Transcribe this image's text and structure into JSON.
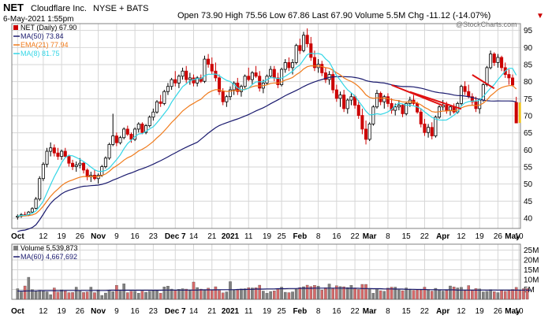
{
  "header": {
    "symbol": "NET",
    "company": "Cloudflare Inc.",
    "exchange": "NYSE + BATS",
    "datetime": "6-May-2021 1:55pm",
    "quote_line": "Open 73.90 High 75.56 Low 67.86 Last 67.90 Volume 5.5M Chg -11.12 (-14.07%)",
    "chg_arrow": "▼",
    "watermark": "@StockCharts.com"
  },
  "legend": {
    "price": "NET (Daily) 67.90",
    "ma50": "MA(50) 73.84",
    "ema21": "EMA(21) 77.94",
    "ma8": "MA(8) 81.75",
    "volume": "Volume 5,539,873",
    "vol_ma60": "MA(60) 4,667,692"
  },
  "colors": {
    "up": "#000000",
    "down": "#cc0000",
    "ma50": "#1a1a6e",
    "ema21": "#f07a1a",
    "ma8": "#33d6e6",
    "trendline": "#e01010",
    "vol_up": "#808080",
    "vol_down": "#d66a6a",
    "grid": "#d6d6d6",
    "last_marker": "#f0c419"
  },
  "chart_data": [
    {
      "type": "candlestick",
      "ylim": [
        37,
        97
      ],
      "y_ticks": [
        40,
        45,
        50,
        55,
        60,
        65,
        70,
        75,
        80,
        85,
        90,
        95
      ],
      "x_tick_labels": [
        "Oct",
        "12",
        "19",
        "26",
        "Nov",
        "9",
        "16",
        "23",
        "Dec 7",
        "14",
        "21",
        "2021",
        "11",
        "19",
        "25",
        "Feb",
        "8",
        "16",
        "22",
        "Mar",
        "8",
        "15",
        "22",
        "Apr",
        "12",
        "19",
        "26",
        "May",
        "10"
      ],
      "x_tick_index": [
        0,
        7,
        12,
        17,
        22,
        27,
        32,
        37,
        43,
        48,
        53,
        58,
        63,
        68,
        72,
        77,
        82,
        87,
        92,
        96,
        101,
        106,
        111,
        116,
        121,
        126,
        131,
        135,
        140
      ],
      "ohlc": [
        [
          40.3,
          41.1,
          39.6,
          40.6
        ],
        [
          40.6,
          41.5,
          40.1,
          41.0
        ],
        [
          41.1,
          41.9,
          40.6,
          40.9
        ],
        [
          41.0,
          42.1,
          40.6,
          41.8
        ],
        [
          41.8,
          43.2,
          41.4,
          42.8
        ],
        [
          42.9,
          46.2,
          42.6,
          45.6
        ],
        [
          45.6,
          52.3,
          45.1,
          51.6
        ],
        [
          51.6,
          56.4,
          50.9,
          55.8
        ],
        [
          55.8,
          60.6,
          54.9,
          59.6
        ],
        [
          59.6,
          62.2,
          58.1,
          60.6
        ],
        [
          60.6,
          61.6,
          58.1,
          59.1
        ],
        [
          59.1,
          60.6,
          57.1,
          58.1
        ],
        [
          58.1,
          60.1,
          57.1,
          59.6
        ],
        [
          59.6,
          60.6,
          57.6,
          58.1
        ],
        [
          58.1,
          58.6,
          55.1,
          56.1
        ],
        [
          56.1,
          57.1,
          54.1,
          55.1
        ],
        [
          55.1,
          56.6,
          53.6,
          55.6
        ],
        [
          55.6,
          57.6,
          54.6,
          56.1
        ],
        [
          56.1,
          56.6,
          53.1,
          54.1
        ],
        [
          54.1,
          54.6,
          51.1,
          52.1
        ],
        [
          52.1,
          53.6,
          50.6,
          52.6
        ],
        [
          52.6,
          54.1,
          51.1,
          51.6
        ],
        [
          51.6,
          53.1,
          50.1,
          52.6
        ],
        [
          52.6,
          55.6,
          52.1,
          55.1
        ],
        [
          55.1,
          58.1,
          54.6,
          57.6
        ],
        [
          57.6,
          62.1,
          57.1,
          61.6
        ],
        [
          61.6,
          70.6,
          61.1,
          64.1
        ],
        [
          64.1,
          65.1,
          61.1,
          62.1
        ],
        [
          62.1,
          64.1,
          61.6,
          63.6
        ],
        [
          63.6,
          66.6,
          63.1,
          66.1
        ],
        [
          66.1,
          67.1,
          64.1,
          64.6
        ],
        [
          64.6,
          65.1,
          62.1,
          63.1
        ],
        [
          63.1,
          66.6,
          62.6,
          66.1
        ],
        [
          66.1,
          68.1,
          65.1,
          67.6
        ],
        [
          67.6,
          68.1,
          64.6,
          65.1
        ],
        [
          65.1,
          67.6,
          64.6,
          67.1
        ],
        [
          67.1,
          70.1,
          66.6,
          69.6
        ],
        [
          69.6,
          72.1,
          68.6,
          71.1
        ],
        [
          71.1,
          74.6,
          70.6,
          74.1
        ],
        [
          74.1,
          76.1,
          72.6,
          73.6
        ],
        [
          73.6,
          77.6,
          73.1,
          77.1
        ],
        [
          77.1,
          79.6,
          76.1,
          78.6
        ],
        [
          78.6,
          81.1,
          77.6,
          80.6
        ],
        [
          80.6,
          83.1,
          78.6,
          79.6
        ],
        [
          79.6,
          82.1,
          78.1,
          81.6
        ],
        [
          81.6,
          84.1,
          80.6,
          83.1
        ],
        [
          83.1,
          84.6,
          79.6,
          80.6
        ],
        [
          80.6,
          82.6,
          79.1,
          81.1
        ],
        [
          81.1,
          82.1,
          78.6,
          79.6
        ],
        [
          79.6,
          81.6,
          78.6,
          81.1
        ],
        [
          81.1,
          82.1,
          79.6,
          80.1
        ],
        [
          80.1,
          87.6,
          79.6,
          86.6
        ],
        [
          86.6,
          88.1,
          84.1,
          85.1
        ],
        [
          85.1,
          87.1,
          82.1,
          83.1
        ],
        [
          83.1,
          85.6,
          80.1,
          81.1
        ],
        [
          81.1,
          82.1,
          76.1,
          77.1
        ],
        [
          77.1,
          78.1,
          73.1,
          74.1
        ],
        [
          74.1,
          76.1,
          72.6,
          75.6
        ],
        [
          75.6,
          78.6,
          74.6,
          77.6
        ],
        [
          77.6,
          80.1,
          76.1,
          79.6
        ],
        [
          79.6,
          81.1,
          76.1,
          77.1
        ],
        [
          77.1,
          79.1,
          75.6,
          78.6
        ],
        [
          78.6,
          82.1,
          78.1,
          81.6
        ],
        [
          81.6,
          84.1,
          80.1,
          80.6
        ],
        [
          80.6,
          83.1,
          79.1,
          82.6
        ],
        [
          82.6,
          84.6,
          81.1,
          81.6
        ],
        [
          81.6,
          83.1,
          77.1,
          78.1
        ],
        [
          78.1,
          80.6,
          76.6,
          79.6
        ],
        [
          79.6,
          82.1,
          79.1,
          81.6
        ],
        [
          81.6,
          84.6,
          81.1,
          83.6
        ],
        [
          83.6,
          84.6,
          80.1,
          81.1
        ],
        [
          81.1,
          82.6,
          78.1,
          79.1
        ],
        [
          79.1,
          84.1,
          78.6,
          83.6
        ],
        [
          83.6,
          86.6,
          82.6,
          85.6
        ],
        [
          85.6,
          87.1,
          83.1,
          84.1
        ],
        [
          84.1,
          86.6,
          82.1,
          85.6
        ],
        [
          85.6,
          91.1,
          85.1,
          90.6
        ],
        [
          90.6,
          92.6,
          88.1,
          89.1
        ],
        [
          89.1,
          94.6,
          88.6,
          93.6
        ],
        [
          93.6,
          95.6,
          90.1,
          91.1
        ],
        [
          91.1,
          93.1,
          86.1,
          87.1
        ],
        [
          87.1,
          89.1,
          83.1,
          84.1
        ],
        [
          84.1,
          86.6,
          82.6,
          85.1
        ],
        [
          85.1,
          86.1,
          81.6,
          82.6
        ],
        [
          82.6,
          84.1,
          79.6,
          80.6
        ],
        [
          80.6,
          83.1,
          79.1,
          82.1
        ],
        [
          82.1,
          83.1,
          76.6,
          77.6
        ],
        [
          77.6,
          79.1,
          74.1,
          75.1
        ],
        [
          75.1,
          77.1,
          72.6,
          76.1
        ],
        [
          76.1,
          77.6,
          71.1,
          72.1
        ],
        [
          72.1,
          75.1,
          70.6,
          74.6
        ],
        [
          74.6,
          76.6,
          73.1,
          75.6
        ],
        [
          75.6,
          76.1,
          72.1,
          73.1
        ],
        [
          73.1,
          74.6,
          69.1,
          70.1
        ],
        [
          70.1,
          72.1,
          64.6,
          66.1
        ],
        [
          66.1,
          68.6,
          61.6,
          63.1
        ],
        [
          63.1,
          68.1,
          62.6,
          67.6
        ],
        [
          67.6,
          73.1,
          67.1,
          72.6
        ],
        [
          72.6,
          77.6,
          72.1,
          76.6
        ],
        [
          76.6,
          77.1,
          73.1,
          74.1
        ],
        [
          74.1,
          76.1,
          72.1,
          75.6
        ],
        [
          75.6,
          76.6,
          72.6,
          73.6
        ],
        [
          73.6,
          75.1,
          70.6,
          71.6
        ],
        [
          71.6,
          73.6,
          70.1,
          72.6
        ],
        [
          72.6,
          74.6,
          71.6,
          73.1
        ],
        [
          73.1,
          73.6,
          69.6,
          70.6
        ],
        [
          70.6,
          74.1,
          70.1,
          73.6
        ],
        [
          73.6,
          75.6,
          72.6,
          74.6
        ],
        [
          74.6,
          76.1,
          73.1,
          73.6
        ],
        [
          73.6,
          74.1,
          70.6,
          71.1
        ],
        [
          71.1,
          72.1,
          66.6,
          67.6
        ],
        [
          67.6,
          69.1,
          64.1,
          65.1
        ],
        [
          65.1,
          67.6,
          63.6,
          66.6
        ],
        [
          66.6,
          68.1,
          63.1,
          64.1
        ],
        [
          64.1,
          70.1,
          63.6,
          69.6
        ],
        [
          69.6,
          73.1,
          69.1,
          72.6
        ],
        [
          72.6,
          74.6,
          71.6,
          73.1
        ],
        [
          73.1,
          74.1,
          70.6,
          71.6
        ],
        [
          71.6,
          73.1,
          70.1,
          72.6
        ],
        [
          72.6,
          73.6,
          70.6,
          71.1
        ],
        [
          71.1,
          74.1,
          70.6,
          73.6
        ],
        [
          73.6,
          79.1,
          73.1,
          78.6
        ],
        [
          78.6,
          80.1,
          76.1,
          77.1
        ],
        [
          77.1,
          79.1,
          75.1,
          75.6
        ],
        [
          75.6,
          76.6,
          73.1,
          74.1
        ],
        [
          74.1,
          75.6,
          71.1,
          72.1
        ],
        [
          72.1,
          75.1,
          70.6,
          74.6
        ],
        [
          74.6,
          79.6,
          74.1,
          79.1
        ],
        [
          79.1,
          84.6,
          78.6,
          84.1
        ],
        [
          84.1,
          89.1,
          83.6,
          88.1
        ],
        [
          88.1,
          88.6,
          84.6,
          85.6
        ],
        [
          85.6,
          88.1,
          84.1,
          87.1
        ],
        [
          87.1,
          87.6,
          83.1,
          84.1
        ],
        [
          84.1,
          85.6,
          81.1,
          82.1
        ],
        [
          82.1,
          83.6,
          79.1,
          81.1
        ],
        [
          81.1,
          82.1,
          78.6,
          79.0
        ],
        [
          73.9,
          75.56,
          67.86,
          67.9
        ]
      ],
      "trendlines": [
        [
          [
            102,
            79
          ],
          [
            116,
            73
          ]
        ],
        [
          [
            107,
            77
          ],
          [
            121,
            72
          ]
        ],
        [
          [
            124,
            82
          ],
          [
            130,
            78
          ]
        ]
      ]
    },
    {
      "type": "bar",
      "ylim": [
        0,
        28
      ],
      "y_ticks": [
        5,
        10,
        15,
        20,
        25
      ],
      "y_tick_labels": [
        "5M",
        "10M",
        "15M",
        "20M",
        "25M"
      ],
      "values": [
        5.4,
        3.8,
        6.8,
        11.2,
        4.9,
        4.1,
        4.6,
        4.5,
        3.8,
        2.4,
        5.8,
        3.7,
        4.8,
        4.4,
        3.4,
        3.5,
        6.2,
        4.5,
        3.5,
        3.8,
        6.2,
        3.4,
        4.8,
        2.0,
        3.2,
        4.5,
        3.9,
        7.1,
        4.2,
        7.9,
        3.4,
        4.1,
        4.1,
        3.1,
        4.2,
        3.6,
        4.1,
        4.5,
        4.5,
        3.1,
        6.3,
        6.7,
        5.2,
        4.5,
        5.1,
        5.4,
        5.2,
        4.5,
        8.8,
        6.0,
        5.2,
        4.8,
        5.7,
        4.9,
        6.4,
        4.5,
        3.3,
        3.8,
        9.0,
        4.6,
        4.7,
        5.3,
        5.4,
        5.9,
        5.8,
        5.9,
        7.2,
        4.2,
        3.1,
        4.0,
        4.3,
        5.1,
        6.2,
        3.6,
        3.4,
        3.8,
        5.2,
        6.0,
        6.4,
        7.2,
        6.5,
        7.1,
        6.7,
        4.7,
        5.9,
        7.8,
        5.5,
        6.9,
        6.5,
        6.4,
        6.0,
        7.1,
        5.8,
        5.0,
        7.6,
        7.6,
        5.2,
        3.1,
        5.5,
        4.4,
        4.1,
        5.7,
        6.2,
        6.2,
        4.8,
        4.4,
        5.8,
        5.2,
        4.6,
        4.9,
        4.8,
        6.2,
        5.0,
        4.2,
        5.6,
        4.9,
        4.2,
        4.5,
        6.8,
        6.3,
        5.8,
        6.1,
        4.4,
        7.0,
        4.6,
        5.5,
        5.3,
        3.8,
        4.1,
        4.9,
        3.9,
        3.4,
        4.6,
        4.1,
        4.6,
        5.0,
        6.1,
        4.4,
        5.4,
        5.5
      ],
      "ma60": [
        4.2,
        4.2,
        4.2,
        4.3,
        4.3,
        4.3,
        4.4,
        4.4,
        4.4,
        4.4,
        4.4,
        4.4,
        4.4,
        4.5,
        4.5,
        4.5,
        4.5,
        4.5,
        4.5,
        4.5,
        4.5,
        4.5,
        4.5,
        4.5,
        4.5,
        4.6,
        4.6,
        4.6,
        4.6,
        4.6,
        4.6,
        4.6,
        4.6,
        4.6,
        4.6,
        4.6,
        4.6,
        4.6,
        4.6,
        4.6,
        4.7,
        4.7,
        4.7,
        4.7,
        4.7,
        4.7,
        4.7,
        4.7,
        4.7,
        4.7,
        4.8,
        4.8,
        4.8,
        4.8,
        4.8,
        4.9,
        4.9,
        4.9,
        4.9,
        4.9,
        5.0,
        5.0,
        5.0,
        5.1,
        5.1,
        5.2,
        5.2,
        5.2,
        5.3,
        5.3,
        5.3,
        5.4,
        5.4,
        5.4,
        5.5,
        5.5,
        5.5,
        5.6,
        5.6,
        5.6,
        5.6,
        5.7,
        5.7,
        5.7,
        5.7,
        5.7,
        5.7,
        5.7,
        5.7,
        5.7,
        5.6,
        5.6,
        5.6,
        5.6,
        5.5,
        5.5,
        5.5,
        5.4,
        5.4,
        5.4,
        5.3,
        5.3,
        5.3,
        5.2,
        5.2,
        5.2,
        5.1,
        5.1,
        5.1,
        5.0,
        5.0,
        5.0,
        4.9,
        4.9,
        4.9,
        4.8,
        4.8,
        4.8,
        4.8,
        4.8,
        4.7,
        4.7,
        4.7,
        4.7,
        4.7,
        4.7,
        4.7,
        4.7,
        4.7,
        4.7,
        4.7,
        4.7,
        4.7,
        4.7,
        4.7,
        4.7,
        4.7,
        4.7,
        4.7,
        4.7,
        4.7
      ]
    }
  ]
}
